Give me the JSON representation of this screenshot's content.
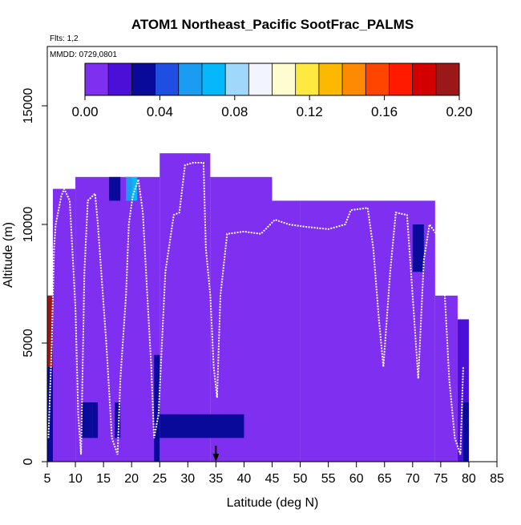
{
  "chart_data": {
    "type": "heatmap",
    "title": "ATOM1 Northeast_Pacific SootFrac_PALMS",
    "annotations": [
      "Flts: 1,2",
      "MMDD: 0729,0801"
    ],
    "xlabel": "Latitude (deg N)",
    "ylabel": "Altitude (m)",
    "xlim": [
      5,
      85
    ],
    "ylim": [
      0,
      17500
    ],
    "x_ticks": [
      5,
      10,
      15,
      20,
      25,
      30,
      35,
      40,
      45,
      50,
      55,
      60,
      65,
      70,
      75,
      80,
      85
    ],
    "y_ticks": [
      0,
      5000,
      10000,
      15000
    ],
    "colorbar": {
      "min": 0.0,
      "max": 0.2,
      "tick_labels": [
        "0.00",
        "0.04",
        "0.08",
        "0.12",
        "0.16",
        "0.20"
      ],
      "ticks": [
        0.0,
        0.04,
        0.08,
        0.12,
        0.16,
        0.2
      ],
      "colors": [
        "#7f2fef",
        "#4a10d8",
        "#0a0a9a",
        "#1f4fe0",
        "#1a9cf2",
        "#04b8fb",
        "#9fd8fb",
        "#f2f4ff",
        "#fffcd0",
        "#ffe840",
        "#fdb800",
        "#fd8a00",
        "#ff4500",
        "#ff1a00",
        "#d20000",
        "#9c1818"
      ]
    },
    "grid": false,
    "legend": "colorbar at top",
    "marker": {
      "x": 35,
      "meaning": "arrow at bottom"
    },
    "cell_grid": {
      "x_start": 5,
      "x_step": 1,
      "y_start": 0,
      "y_step": 500
    },
    "columns": [
      {
        "x": [
          5,
          6
        ],
        "bins": [
          [
            0,
            7000,
            0.03
          ]
        ],
        "color_over": [
          [
            4000,
            7000,
            0.19
          ]
        ]
      },
      {
        "x": [
          6,
          10
        ],
        "bins": [
          [
            0,
            11500,
            0.01
          ]
        ]
      },
      {
        "x": [
          10,
          25
        ],
        "bins": [
          [
            0,
            12000,
            0.01
          ]
        ]
      },
      {
        "x": [
          25,
          34
        ],
        "bins": [
          [
            0,
            13000,
            0.01
          ]
        ]
      },
      {
        "x": [
          34,
          45
        ],
        "bins": [
          [
            0,
            12000,
            0.01
          ]
        ]
      },
      {
        "x": [
          45,
          50
        ],
        "bins": [
          [
            0,
            11000,
            0.01
          ]
        ]
      },
      {
        "x": [
          50,
          74
        ],
        "bins": [
          [
            0,
            11000,
            0.01
          ]
        ]
      },
      {
        "x": [
          74,
          78
        ],
        "bins": [
          [
            0,
            7000,
            0.01
          ]
        ]
      },
      {
        "x": [
          78,
          80
        ],
        "bins": [
          [
            0,
            6000,
            0.015
          ]
        ]
      }
    ],
    "highlights": [
      {
        "x": [
          20,
          21
        ],
        "y": [
          11000,
          12000
        ],
        "value": 0.07
      },
      {
        "x": [
          19,
          20
        ],
        "y": [
          11000,
          12000
        ],
        "value": 0.05
      },
      {
        "x": [
          16,
          18
        ],
        "y": [
          11000,
          12000
        ],
        "value": 0.03
      },
      {
        "x": [
          11,
          13
        ],
        "y": [
          1000,
          2500
        ],
        "value": 0.03
      },
      {
        "x": [
          13,
          14
        ],
        "y": [
          1000,
          2500
        ],
        "value": 0.025
      },
      {
        "x": [
          17,
          18
        ],
        "y": [
          1000,
          2500
        ],
        "value": 0.03
      },
      {
        "x": [
          24,
          25
        ],
        "y": [
          0,
          4500
        ],
        "value": 0.03
      },
      {
        "x": [
          25,
          40
        ],
        "y": [
          1000,
          2000
        ],
        "value": 0.025
      },
      {
        "x": [
          70,
          72
        ],
        "y": [
          8000,
          10000
        ],
        "value": 0.025
      },
      {
        "x": [
          79,
          80
        ],
        "y": [
          0,
          2500
        ],
        "value": 0.03
      }
    ],
    "flight_track_points": [
      [
        5.2,
        1000
      ],
      [
        5.8,
        5000
      ],
      [
        6.2,
        9000
      ],
      [
        6.5,
        10000
      ],
      [
        7.5,
        11200
      ],
      [
        8.0,
        11500
      ],
      [
        9.0,
        11000
      ],
      [
        10.0,
        6500
      ],
      [
        10.5,
        2000
      ],
      [
        11.0,
        300
      ],
      [
        11.6,
        8000
      ],
      [
        12.2,
        11000
      ],
      [
        13.5,
        11300
      ],
      [
        14.0,
        10000
      ],
      [
        15.5,
        5000
      ],
      [
        16.5,
        1000
      ],
      [
        17.5,
        300
      ],
      [
        18.0,
        3500
      ],
      [
        19.0,
        7000
      ],
      [
        19.5,
        10000
      ],
      [
        20.2,
        11200
      ],
      [
        21.2,
        11900
      ],
      [
        22.0,
        10500
      ],
      [
        22.8,
        7000
      ],
      [
        23.5,
        4000
      ],
      [
        24.0,
        1000
      ],
      [
        24.8,
        2000
      ],
      [
        26.0,
        8000
      ],
      [
        27.5,
        10400
      ],
      [
        28.5,
        10500
      ],
      [
        29.5,
        12500
      ],
      [
        31.0,
        12600
      ],
      [
        32.8,
        12600
      ],
      [
        33.2,
        9000
      ],
      [
        34.0,
        7000
      ],
      [
        34.6,
        4000
      ],
      [
        35.2,
        2700
      ],
      [
        35.8,
        7000
      ],
      [
        37.0,
        9600
      ],
      [
        40.0,
        9700
      ],
      [
        43.0,
        9600
      ],
      [
        45.5,
        10200
      ],
      [
        48.0,
        10000
      ],
      [
        51.0,
        9900
      ],
      [
        55.0,
        9800
      ],
      [
        58.0,
        10000
      ],
      [
        59.0,
        10600
      ],
      [
        62.0,
        10700
      ],
      [
        63.0,
        9000
      ],
      [
        64.0,
        6000
      ],
      [
        64.8,
        4000
      ],
      [
        66.0,
        8000
      ],
      [
        67.0,
        10500
      ],
      [
        69.0,
        10400
      ],
      [
        70.0,
        7000
      ],
      [
        71.0,
        3500
      ],
      [
        72.0,
        8500
      ],
      [
        73.0,
        10000
      ],
      [
        74.5,
        9500
      ],
      [
        75.5,
        8000
      ],
      [
        76.5,
        3500
      ],
      [
        77.5,
        1000
      ],
      [
        78.5,
        300
      ],
      [
        79.0,
        4000
      ]
    ]
  }
}
